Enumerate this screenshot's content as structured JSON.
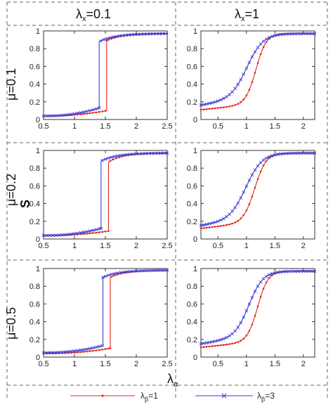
{
  "figure": {
    "column_headers": [
      {
        "base": "λ",
        "sub": "x",
        "rest": "=0.1"
      },
      {
        "base": "λ",
        "sub": "x",
        "rest": "=1"
      }
    ],
    "row_headers": [
      "μ=0.1",
      "μ=0.2",
      "μ=0.5"
    ],
    "ylabel": "S",
    "xlabel": {
      "base": "λ",
      "sub": "α"
    },
    "legend": [
      {
        "base": "λ",
        "sub": "β",
        "rest": "=1",
        "color": "#e2241b",
        "marker": "dot"
      },
      {
        "base": "λ",
        "sub": "β",
        "rest": "=3",
        "color": "#3a3ad8",
        "marker": "x"
      }
    ]
  },
  "chart_data": [
    {
      "type": "line",
      "row": "μ=0.1",
      "col": "λx=0.1",
      "xlim": [
        0.5,
        2.5
      ],
      "ylim": [
        0,
        1
      ],
      "xticks": [
        "0.5",
        "1",
        "1.5",
        "2",
        "2.5"
      ],
      "yticks": [
        "0",
        "0.2",
        "0.4",
        "0.6",
        "0.8",
        "1"
      ],
      "series": [
        {
          "name": "λβ=1",
          "jump": 1.52,
          "pre": [
            0.04,
            0.1
          ],
          "post": [
            0.89,
            0.97
          ]
        },
        {
          "name": "λβ=3",
          "jump": 1.4,
          "pre": [
            0.04,
            0.13
          ],
          "post": [
            0.88,
            0.97
          ]
        }
      ]
    },
    {
      "type": "line",
      "row": "μ=0.1",
      "col": "λx=1",
      "xlim": [
        0.2,
        2.2
      ],
      "ylim": [
        0,
        1
      ],
      "xticks": [
        "0.5",
        "1",
        "1.5",
        "2"
      ],
      "yticks": [
        "0",
        "0.2",
        "0.4",
        "0.6",
        "0.8",
        "1"
      ],
      "series": [
        {
          "name": "λβ=1",
          "mid": 1.17,
          "k": 11,
          "start": 0.11,
          "end": 0.97
        },
        {
          "name": "λβ=3",
          "mid": 1.02,
          "k": 7,
          "start": 0.16,
          "end": 0.97
        }
      ]
    },
    {
      "type": "line",
      "row": "μ=0.2",
      "col": "λx=0.1",
      "xlim": [
        0.5,
        2.5
      ],
      "ylim": [
        0,
        1
      ],
      "xticks": [
        "0.5",
        "1",
        "1.5",
        "2",
        "2.5"
      ],
      "yticks": [
        "0",
        "0.2",
        "0.4",
        "0.6",
        "0.8",
        "1"
      ],
      "series": [
        {
          "name": "λβ=1",
          "jump": 1.55,
          "pre": [
            0.04,
            0.09
          ],
          "post": [
            0.87,
            0.97
          ]
        },
        {
          "name": "λβ=3",
          "jump": 1.43,
          "pre": [
            0.04,
            0.12
          ],
          "post": [
            0.88,
            0.97
          ]
        }
      ]
    },
    {
      "type": "line",
      "row": "μ=0.2",
      "col": "λx=1",
      "xlim": [
        0.2,
        2.2
      ],
      "ylim": [
        0,
        1
      ],
      "xticks": [
        "0.5",
        "1",
        "1.5",
        "2"
      ],
      "yticks": [
        "0",
        "0.2",
        "0.4",
        "0.6",
        "0.8",
        "1"
      ],
      "series": [
        {
          "name": "λβ=1",
          "mid": 1.15,
          "k": 10,
          "start": 0.12,
          "end": 0.97
        },
        {
          "name": "λβ=3",
          "mid": 1.0,
          "k": 7,
          "start": 0.15,
          "end": 0.97
        }
      ]
    },
    {
      "type": "line",
      "row": "μ=0.5",
      "col": "λx=0.1",
      "xlim": [
        0.5,
        2.5
      ],
      "ylim": [
        0,
        1
      ],
      "xticks": [
        "0.5",
        "1",
        "1.5",
        "2",
        "2.5"
      ],
      "yticks": [
        "0",
        "0.2",
        "0.4",
        "0.6",
        "0.8",
        "1"
      ],
      "series": [
        {
          "name": "λβ=1",
          "jump": 1.58,
          "pre": [
            0.04,
            0.1
          ],
          "post": [
            0.9,
            0.98
          ]
        },
        {
          "name": "λβ=3",
          "jump": 1.46,
          "pre": [
            0.05,
            0.13
          ],
          "post": [
            0.9,
            0.98
          ]
        }
      ]
    },
    {
      "type": "line",
      "row": "μ=0.5",
      "col": "λx=1",
      "xlim": [
        0.2,
        2.2
      ],
      "ylim": [
        0,
        1
      ],
      "xticks": [
        "0.5",
        "1",
        "1.5",
        "2"
      ],
      "yticks": [
        "0",
        "0.2",
        "0.4",
        "0.6",
        "0.8",
        "1"
      ],
      "series": [
        {
          "name": "λβ=1",
          "mid": 1.2,
          "k": 11,
          "start": 0.11,
          "end": 0.97
        },
        {
          "name": "λβ=3",
          "mid": 1.05,
          "k": 8,
          "start": 0.15,
          "end": 0.97
        }
      ]
    }
  ]
}
